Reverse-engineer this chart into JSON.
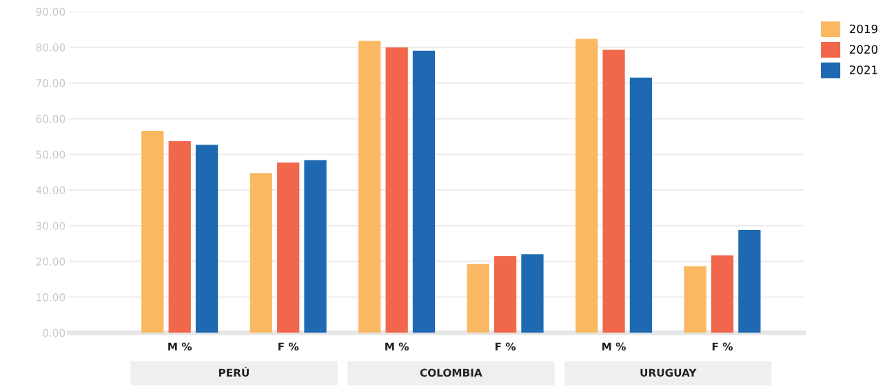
{
  "chart_data": {
    "type": "bar",
    "categories": [
      "M %",
      "F %",
      "M %",
      "F %",
      "M %",
      "F %"
    ],
    "series": [
      {
        "name": "2019",
        "color": "#fbb862",
        "values": [
          56.6,
          44.8,
          81.8,
          19.3,
          82.4,
          18.7
        ]
      },
      {
        "name": "2020",
        "color": "#f1674b",
        "values": [
          53.7,
          47.7,
          80.0,
          21.5,
          79.3,
          21.7
        ]
      },
      {
        "name": "2021",
        "color": "#1f69b2",
        "values": [
          52.7,
          48.4,
          79.0,
          22.0,
          71.5,
          28.8
        ]
      }
    ],
    "annotations": [
      "PERÚ",
      "COLOMBIA",
      "URUGUAY"
    ],
    "ylim": [
      0,
      90
    ],
    "yticks": [
      {
        "value": 0,
        "label": "0.00"
      },
      {
        "value": 10,
        "label": "10.00"
      },
      {
        "value": 20,
        "label": "20.00"
      },
      {
        "value": 30,
        "label": "30.00"
      },
      {
        "value": 40,
        "label": "40.00"
      },
      {
        "value": 50,
        "label": "50.00"
      },
      {
        "value": 60,
        "label": "60.00"
      },
      {
        "value": 70,
        "label": "70.00"
      },
      {
        "value": 80,
        "label": "80.00"
      },
      {
        "value": 90,
        "label": "90.00"
      }
    ],
    "grid": "y",
    "legend": "top right"
  }
}
